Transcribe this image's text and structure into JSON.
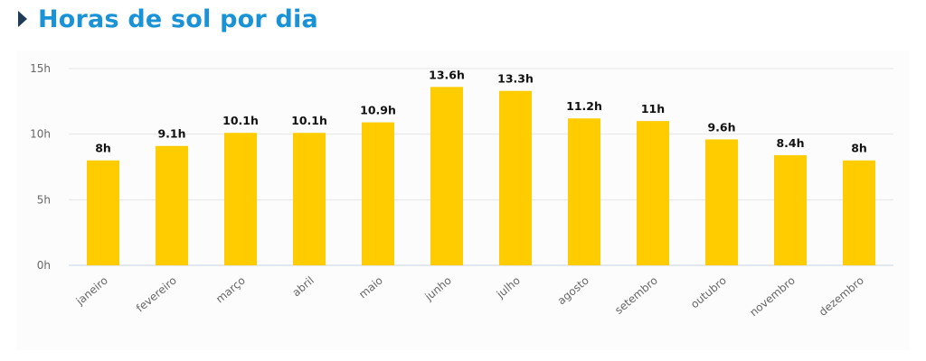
{
  "header": {
    "title": "Horas de sol por dia",
    "icon": "caret-right-icon"
  },
  "colors": {
    "bar": "#ffcc00",
    "title": "#1a93d6",
    "icon": "#1f3b57"
  },
  "chart_data": {
    "type": "bar",
    "title": "Horas de sol por dia",
    "xlabel": "",
    "ylabel": "",
    "ylim": [
      0,
      15
    ],
    "yticks": [
      "0h",
      "5h",
      "10h",
      "15h"
    ],
    "ytick_values": [
      0,
      5,
      10,
      15
    ],
    "grid": true,
    "categories": [
      "janeiro",
      "fevereiro",
      "março",
      "abril",
      "maio",
      "junho",
      "julho",
      "agosto",
      "setembro",
      "outubro",
      "novembro",
      "dezembro"
    ],
    "values": [
      8,
      9.1,
      10.1,
      10.1,
      10.9,
      13.6,
      13.3,
      11.2,
      11,
      9.6,
      8.4,
      8
    ],
    "data_labels": [
      "8h",
      "9.1h",
      "10.1h",
      "10.1h",
      "10.9h",
      "13.6h",
      "13.3h",
      "11.2h",
      "11h",
      "9.6h",
      "8.4h",
      "8h"
    ]
  }
}
